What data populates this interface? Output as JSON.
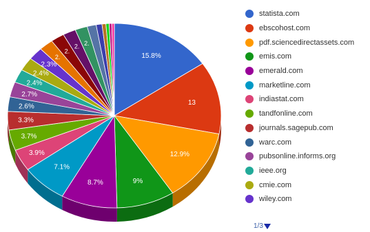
{
  "chart_data": {
    "type": "pie",
    "title": "",
    "slices": [
      {
        "name": "statista.com",
        "value": 15.8,
        "label": "15.8%",
        "color": "#3366cc"
      },
      {
        "name": "ebscohost.com",
        "value": 13.0,
        "label": "13",
        "color": "#dc3912"
      },
      {
        "name": "pdf.sciencedirectassets.com",
        "value": 12.9,
        "label": "12.9%",
        "color": "#ff9900"
      },
      {
        "name": "emis.com",
        "value": 9.0,
        "label": "9%",
        "color": "#109618"
      },
      {
        "name": "emerald.com",
        "value": 8.7,
        "label": "8.7%",
        "color": "#990099"
      },
      {
        "name": "marketline.com",
        "value": 7.1,
        "label": "7.1%",
        "color": "#0099c6"
      },
      {
        "name": "indiastat.com",
        "value": 3.9,
        "label": "3.9%",
        "color": "#dd4477"
      },
      {
        "name": "tandfonline.com",
        "value": 3.7,
        "label": "3.7%",
        "color": "#66aa00"
      },
      {
        "name": "journals.sagepub.com",
        "value": 3.3,
        "label": "3.3%",
        "color": "#b82e2e"
      },
      {
        "name": "warc.com",
        "value": 2.6,
        "label": "2.6%",
        "color": "#316395"
      },
      {
        "name": "pubsonline.informs.org",
        "value": 2.7,
        "label": "2.7%",
        "color": "#994499"
      },
      {
        "name": "ieee.org",
        "value": 2.4,
        "label": "2.4%",
        "color": "#22aa99"
      },
      {
        "name": "cmie.com",
        "value": 2.4,
        "label": "2.4%",
        "color": "#aaaa11"
      },
      {
        "name": "wiley.com",
        "value": 2.3,
        "label": "2.3%",
        "color": "#6633cc"
      },
      {
        "value": 2.2,
        "label": "2.",
        "color": "#e67300"
      },
      {
        "value": 2.1,
        "label": "2.",
        "color": "#8b0707"
      },
      {
        "value": 2.0,
        "label": "2.",
        "color": "#651067"
      },
      {
        "value": 1.9,
        "label": "2.",
        "color": "#329262"
      },
      {
        "value": 1.4,
        "label": "",
        "color": "#5574a6"
      },
      {
        "value": 0.9,
        "label": "",
        "color": "#3b3eac"
      },
      {
        "value": 0.6,
        "label": "",
        "color": "#b77322"
      },
      {
        "value": 0.5,
        "label": "",
        "color": "#16d620"
      },
      {
        "value": 0.4,
        "label": "",
        "color": "#b91383"
      },
      {
        "value": 0.4,
        "label": "",
        "color": "#f4359e"
      }
    ],
    "legend": {
      "placement": "right",
      "items": [
        "statista.com",
        "ebscohost.com",
        "pdf.sciencedirectassets.com",
        "emis.com",
        "emerald.com",
        "marketline.com",
        "indiastat.com",
        "tandfonline.com",
        "journals.sagepub.com",
        "warc.com",
        "pubsonline.informs.org",
        "ieee.org",
        "cmie.com",
        "wiley.com"
      ]
    },
    "pager_text": "1/3"
  }
}
